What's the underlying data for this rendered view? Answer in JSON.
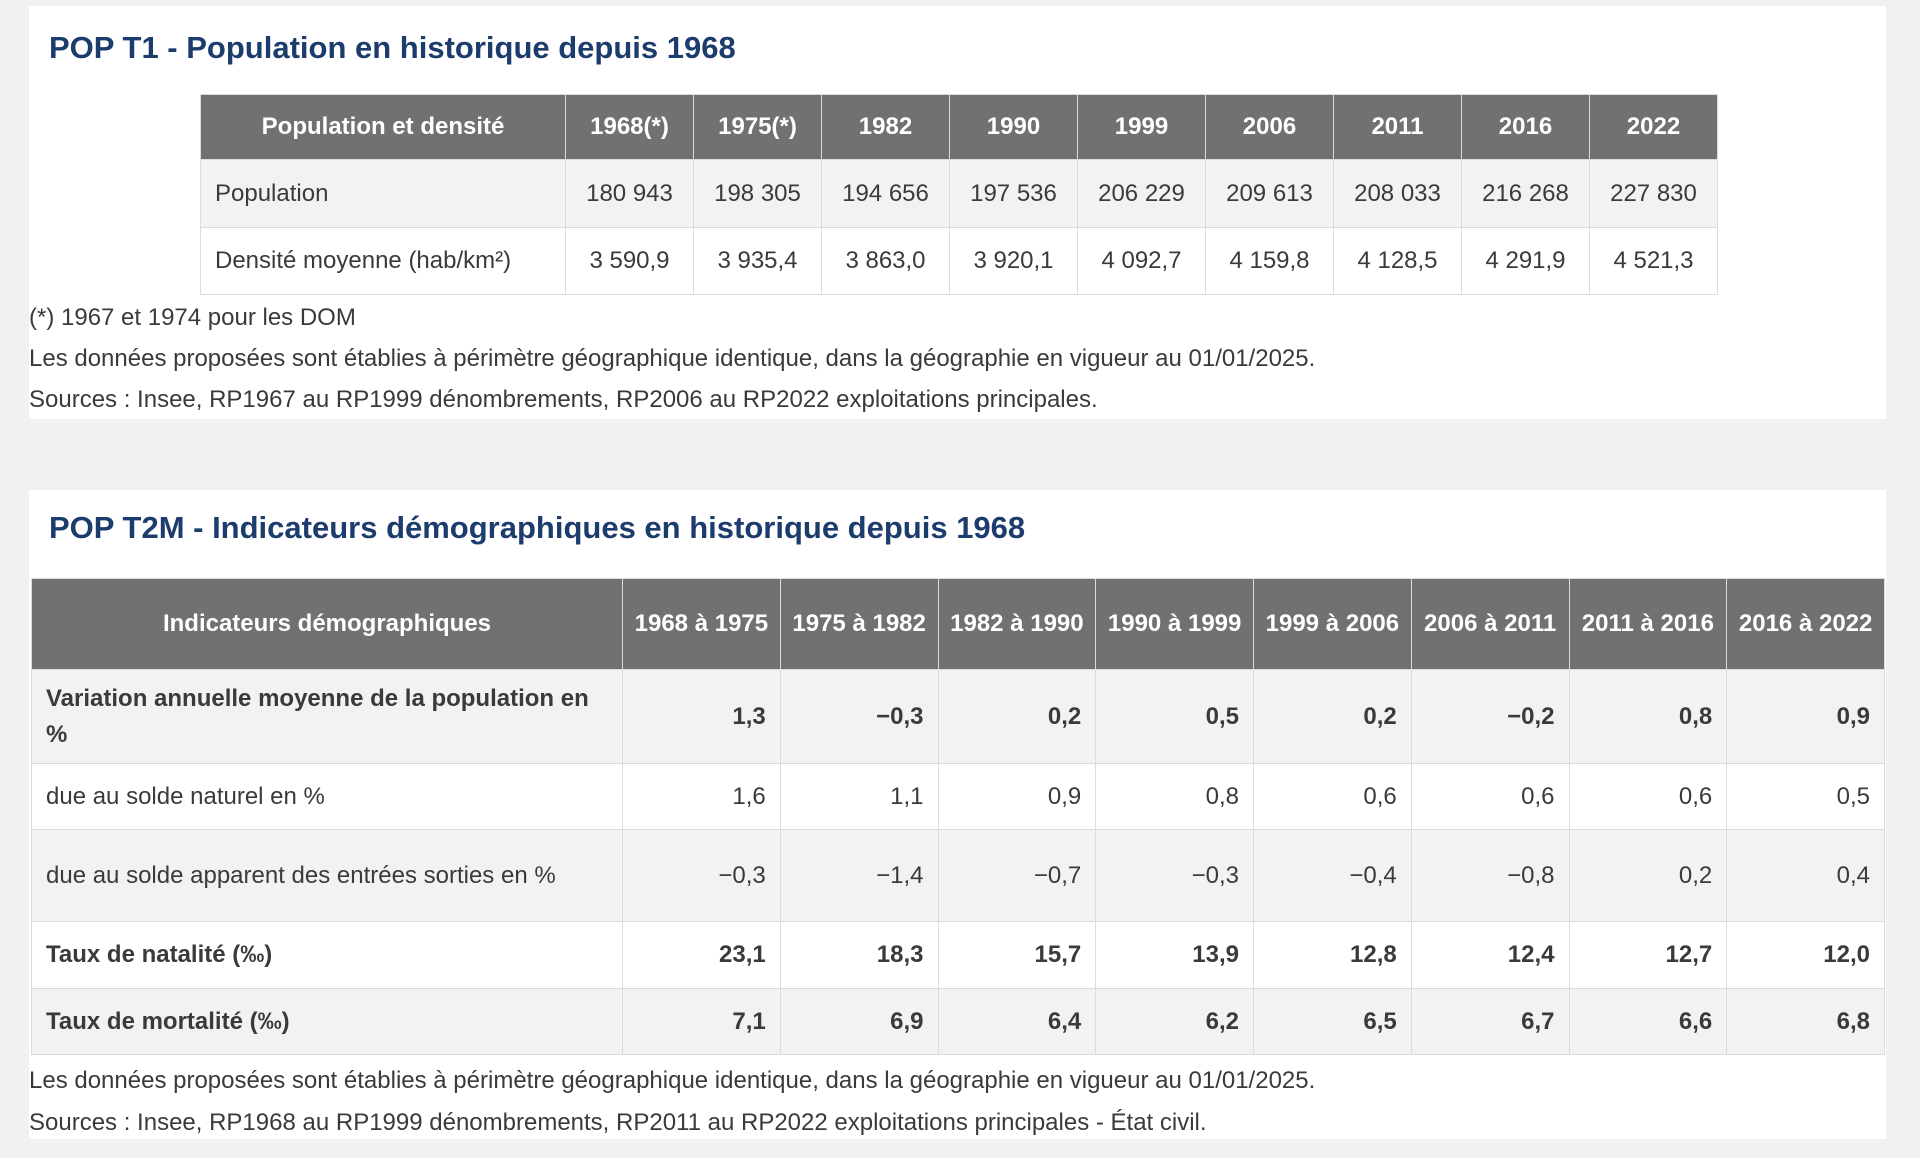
{
  "t1": {
    "title": "POP T1 - Population en historique depuis 1968",
    "headers": [
      "Population et densité",
      "1968(*)",
      "1975(*)",
      "1982",
      "1990",
      "1999",
      "2006",
      "2011",
      "2016",
      "2022"
    ],
    "rows": [
      {
        "label": "Population",
        "values": [
          "180 943",
          "198 305",
          "194 656",
          "197 536",
          "206 229",
          "209 613",
          "208 033",
          "216 268",
          "227 830"
        ]
      },
      {
        "label": "Densité moyenne (hab/km²)",
        "values": [
          "3 590,9",
          "3 935,4",
          "3 863,0",
          "3 920,1",
          "4 092,7",
          "4 159,8",
          "4 128,5",
          "4 291,9",
          "4 521,3"
        ]
      }
    ],
    "notes": [
      "(*) 1967 et 1974 pour les DOM",
      "Les données proposées sont établies à périmètre géographique identique, dans la géographie en vigueur au 01/01/2025.",
      "Sources : Insee, RP1967 au RP1999 dénombrements, RP2006 au RP2022 exploitations principales."
    ]
  },
  "t2": {
    "title": "POP T2M - Indicateurs démographiques en historique depuis 1968",
    "headers": [
      "Indicateurs démographiques",
      "1968 à 1975",
      "1975 à 1982",
      "1982 à 1990",
      "1990 à 1999",
      "1999 à 2006",
      "2006 à 2011",
      "2011 à 2016",
      "2016 à 2022"
    ],
    "rows": [
      {
        "label": "Variation annuelle moyenne de la population en %",
        "bold": true,
        "values": [
          "1,3",
          "−0,3",
          "0,2",
          "0,5",
          "0,2",
          "−0,2",
          "0,8",
          "0,9"
        ]
      },
      {
        "label": "due au solde naturel en %",
        "bold": false,
        "values": [
          "1,6",
          "1,1",
          "0,9",
          "0,8",
          "0,6",
          "0,6",
          "0,6",
          "0,5"
        ]
      },
      {
        "label": "due au solde apparent des entrées sorties en %",
        "bold": false,
        "values": [
          "−0,3",
          "−1,4",
          "−0,7",
          "−0,3",
          "−0,4",
          "−0,8",
          "0,2",
          "0,4"
        ]
      },
      {
        "label": "Taux de natalité (‰)",
        "bold": true,
        "values": [
          "23,1",
          "18,3",
          "15,7",
          "13,9",
          "12,8",
          "12,4",
          "12,7",
          "12,0"
        ]
      },
      {
        "label": "Taux de mortalité (‰)",
        "bold": true,
        "values": [
          "7,1",
          "6,9",
          "6,4",
          "6,2",
          "6,5",
          "6,7",
          "6,6",
          "6,8"
        ]
      }
    ],
    "notes": [
      "Les données proposées sont établies à périmètre géographique identique, dans la géographie en vigueur au 01/01/2025.",
      "Sources : Insee, RP1968 au RP1999 dénombrements, RP2011 au RP2022 exploitations principales - État civil."
    ]
  }
}
